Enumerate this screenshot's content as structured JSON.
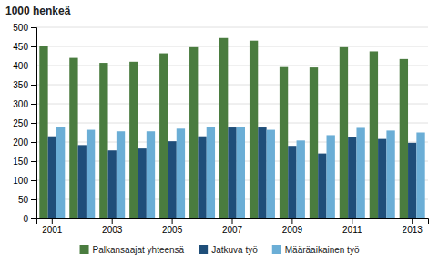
{
  "chart_data": {
    "type": "bar",
    "title": "1000 henkeä",
    "categories": [
      "2001",
      null,
      "2003",
      null,
      "2005",
      null,
      "2007",
      null,
      "2009",
      null,
      "2011",
      null,
      "2013"
    ],
    "series": [
      {
        "name": "Palkansaajat yhteensä",
        "color": "#4a7c3f",
        "values": [
          452,
          420,
          407,
          410,
          432,
          448,
          472,
          465,
          396,
          395,
          448,
          437,
          417
        ]
      },
      {
        "name": "Jatkuva työ",
        "color": "#1f4e79",
        "values": [
          215,
          192,
          178,
          183,
          202,
          215,
          238,
          238,
          190,
          170,
          213,
          208,
          198
        ]
      },
      {
        "name": "Määräaikainen työ",
        "color": "#6baed6",
        "values": [
          240,
          232,
          228,
          228,
          235,
          240,
          240,
          232,
          204,
          218,
          237,
          230,
          225
        ]
      }
    ],
    "ylim": [
      0,
      500
    ],
    "yticks": [
      0,
      50,
      100,
      150,
      200,
      250,
      300,
      350,
      400,
      450,
      500
    ],
    "grid": true,
    "legend": "bottom"
  }
}
